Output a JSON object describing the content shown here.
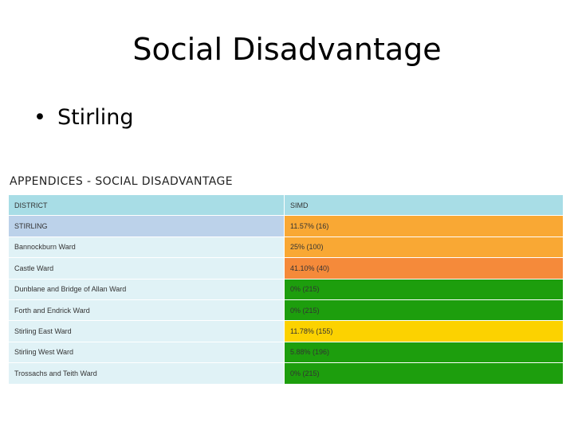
{
  "slide": {
    "title": "Social Disadvantage",
    "bullet": "Stirling",
    "bullet_marker": "•"
  },
  "appendix": {
    "title": "APPENDICES - SOCIAL DISADVANTAGE",
    "columns": [
      "DISTRICT",
      "SIMD"
    ],
    "rows": [
      {
        "district": "STIRLING",
        "simd": "11.57% (16)",
        "color": "#f9a834"
      },
      {
        "district": "Bannockburn Ward",
        "simd": "25% (100)",
        "color": "#f9a834"
      },
      {
        "district": "Castle Ward",
        "simd": "41.10% (40)",
        "color": "#f58a3a"
      },
      {
        "district": "Dunblane and Bridge of Allan Ward",
        "simd": "0% (215)",
        "color": "#1d9e0d"
      },
      {
        "district": "Forth and Endrick Ward",
        "simd": "0% (215)",
        "color": "#1d9e0d"
      },
      {
        "district": "Stirling East Ward",
        "simd": "11.78% (155)",
        "color": "#fcd200"
      },
      {
        "district": "Stirling West Ward",
        "simd": "5.88% (196)",
        "color": "#1d9e0d"
      },
      {
        "district": "Trossachs and Teith Ward",
        "simd": "0% (215)",
        "color": "#1d9e0d"
      }
    ]
  }
}
